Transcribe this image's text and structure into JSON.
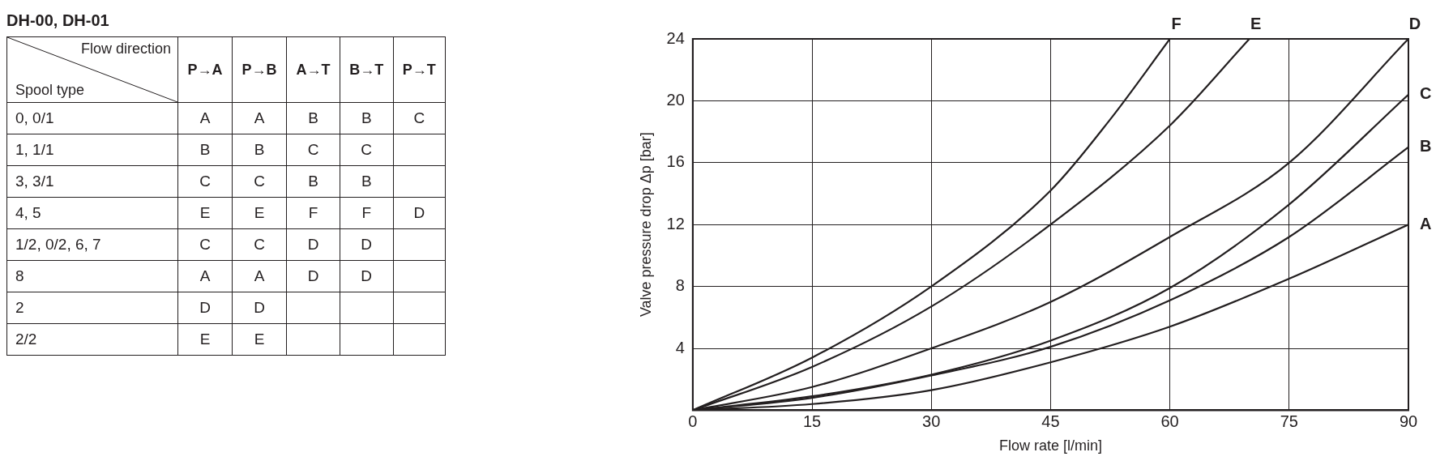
{
  "chart_data": [
    {
      "type": "other",
      "title": "DH-00, DH-01",
      "xlabel": "Flow direction",
      "ylabel": "Spool type",
      "categories": [
        "P→A",
        "P→B",
        "A→T",
        "B→T",
        "P→T"
      ],
      "y_categories": [
        "0, 0/1",
        "1, 1/1",
        "3, 3/1",
        "4, 5",
        "1/2, 0/2, 6, 7",
        "8",
        "2",
        "2/2"
      ],
      "cell_labels": [
        [
          "A",
          "A",
          "B",
          "B",
          "C"
        ],
        [
          "B",
          "B",
          "C",
          "C",
          null
        ],
        [
          "C",
          "C",
          "B",
          "B",
          null
        ],
        [
          "E",
          "E",
          "F",
          "F",
          "D"
        ],
        [
          "C",
          "C",
          "D",
          "D",
          null
        ],
        [
          "A",
          "A",
          "D",
          "D",
          null
        ],
        [
          "D",
          "D",
          null,
          null,
          null
        ],
        [
          "E",
          "E",
          null,
          null,
          null
        ]
      ]
    },
    {
      "type": "line",
      "xlabel": "Flow rate [l/min]",
      "ylabel": "Valve pressure drop Δp [bar]",
      "xlim": [
        0,
        90
      ],
      "xticks": [
        0,
        15,
        30,
        45,
        60,
        75,
        90
      ],
      "ylim": [
        0,
        24
      ],
      "yticks": [
        {
          "value": 0,
          "label": null
        },
        4,
        8,
        12,
        16,
        20,
        24
      ],
      "grid": true,
      "legend": false,
      "marker": "none",
      "line_style": "solid",
      "series": [
        {
          "name": "F",
          "color": "#231f20",
          "x": [
            0,
            15,
            30,
            45,
            52.5,
            60
          ],
          "values": [
            0,
            3.4,
            8,
            14.2,
            18.8,
            24
          ]
        },
        {
          "name": "E",
          "color": "#231f20",
          "x": [
            0,
            15,
            30,
            45,
            60,
            70
          ],
          "values": [
            0,
            2.8,
            6.7,
            12,
            18.4,
            24
          ]
        },
        {
          "name": "D",
          "color": "#231f20",
          "x": [
            0,
            15,
            30,
            45,
            60,
            75,
            90
          ],
          "values": [
            0,
            1.5,
            4,
            7,
            11.2,
            16,
            24
          ]
        },
        {
          "name": "C",
          "color": "#231f20",
          "x": [
            0,
            15,
            30,
            45,
            60,
            75,
            90
          ],
          "values": [
            0,
            0.9,
            2.3,
            4.5,
            7.9,
            13.3,
            20.4
          ]
        },
        {
          "name": "B",
          "color": "#231f20",
          "x": [
            0,
            15,
            30,
            45,
            60,
            75,
            90
          ],
          "values": [
            0,
            0.8,
            2.25,
            4.1,
            7.1,
            11.2,
            17
          ]
        },
        {
          "name": "A",
          "color": "#231f20",
          "x": [
            0,
            15,
            30,
            45,
            60,
            75,
            90
          ],
          "values": [
            0,
            0.4,
            1.3,
            3.1,
            5.4,
            8.5,
            12
          ]
        }
      ]
    }
  ]
}
